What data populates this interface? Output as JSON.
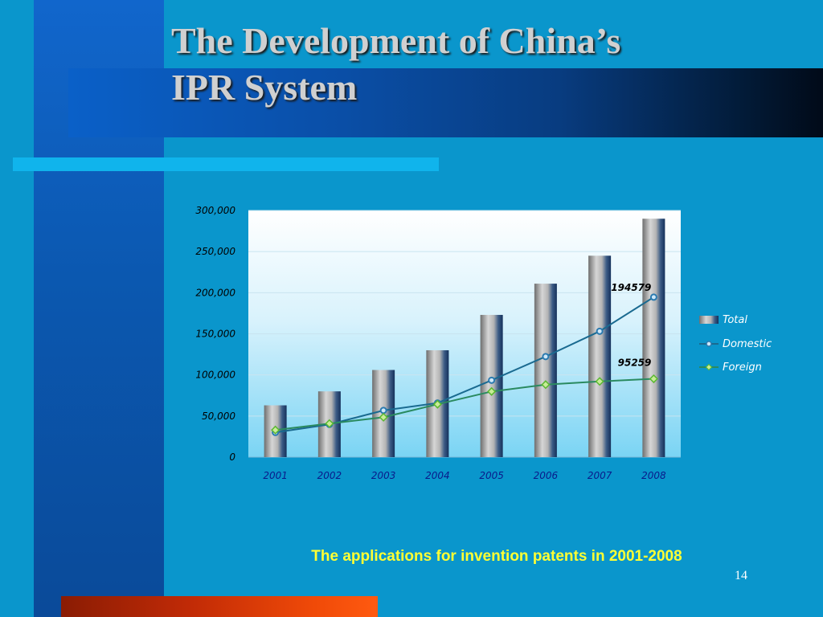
{
  "slide": {
    "title_line1": "The Development of China’s",
    "title_line2": "IPR System",
    "caption": "The applications for invention patents in 2001-2008",
    "page_number": "14"
  },
  "colors": {
    "background": "#0a96cc",
    "domestic_line": "#1a6a90",
    "domestic_marker": "#2a7ab0",
    "foreign_line": "#2a8a60",
    "foreign_marker": "#5ab830",
    "caption": "#ffff33"
  },
  "chart_data": {
    "type": "bar",
    "categories": [
      "2001",
      "2002",
      "2003",
      "2004",
      "2005",
      "2006",
      "2007",
      "2008"
    ],
    "ylim": [
      0,
      300000
    ],
    "y_ticks": [
      "0",
      "50,000",
      "100,000",
      "150,000",
      "200,000",
      "250,000",
      "300,000"
    ],
    "y_tick_values": [
      0,
      50000,
      100000,
      150000,
      200000,
      250000,
      300000
    ],
    "grid": true,
    "legend_position": "right",
    "series": [
      {
        "name": "Total",
        "kind": "bar",
        "values": [
          63000,
          80000,
          106000,
          130000,
          173000,
          211000,
          245000,
          290000
        ]
      },
      {
        "name": "Domestic",
        "kind": "line",
        "values": [
          30000,
          39800,
          56800,
          65800,
          93500,
          122300,
          153100,
          194579
        ]
      },
      {
        "name": "Foreign",
        "kind": "line",
        "values": [
          33000,
          40800,
          48500,
          64300,
          79800,
          88200,
          92100,
          95259
        ]
      }
    ],
    "annotations": [
      {
        "series": "Domestic",
        "category": "2008",
        "text": "194579"
      },
      {
        "series": "Foreign",
        "category": "2008",
        "text": "95259"
      }
    ]
  }
}
